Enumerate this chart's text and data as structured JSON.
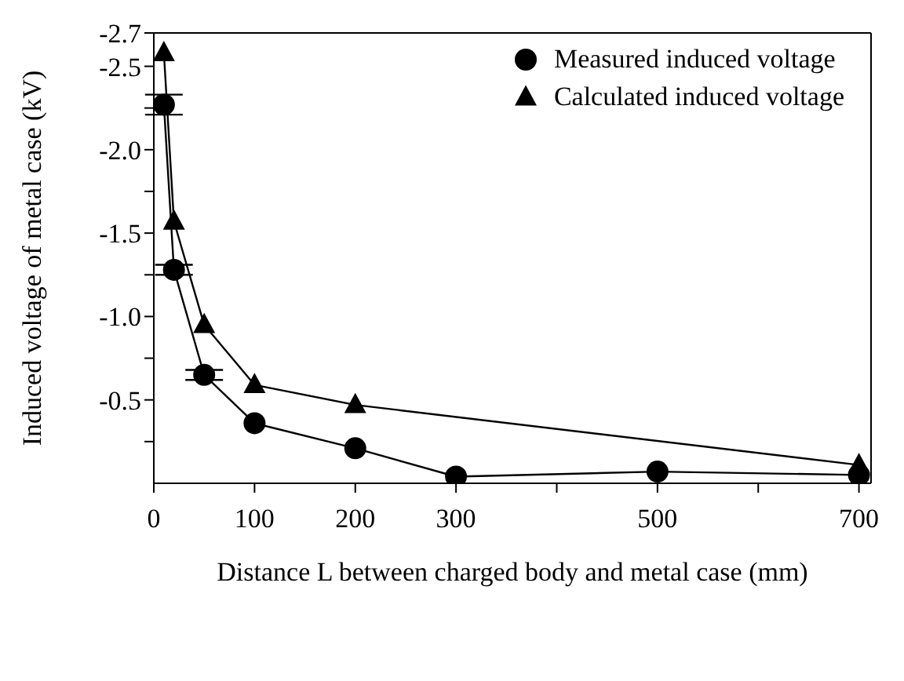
{
  "chart_data": {
    "type": "line",
    "xlabel": "Distance L between charged body and metal case (mm)",
    "ylabel": "Induced voltage of metal case (kV)",
    "x": [
      10,
      20,
      50,
      100,
      200,
      300,
      500,
      700
    ],
    "xlim": [
      0,
      712
    ],
    "xticks": [
      0,
      100,
      200,
      300,
      {
        "value": 400,
        "label": null
      },
      500,
      {
        "value": 600,
        "label": null
      },
      700
    ],
    "ylim": [
      0,
      -2.7
    ],
    "yticks": [
      {
        "value": -0.25,
        "label": null
      },
      -0.5,
      {
        "value": -0.75,
        "label": null
      },
      {
        "value": -1.0,
        "label": "-1.0"
      },
      {
        "value": -1.25,
        "label": null
      },
      -1.5,
      {
        "value": -1.75,
        "label": null
      },
      {
        "value": -2.0,
        "label": "-2.0"
      },
      {
        "value": -2.25,
        "label": null
      },
      -2.5,
      -2.7
    ],
    "series": [
      {
        "name": "Measured induced voltage",
        "color": "#000000",
        "marker": "circle",
        "values": [
          -2.27,
          -1.28,
          -0.65,
          -0.36,
          -0.21,
          -0.04,
          -0.07,
          -0.05
        ],
        "errors": [
          0.06,
          0.03,
          0.03,
          null,
          null,
          null,
          null,
          null
        ]
      },
      {
        "name": "Calculated induced voltage",
        "color": "#000000",
        "marker": "triangle",
        "values": [
          -2.58,
          -1.57,
          -0.95,
          -0.59,
          -0.47,
          null,
          null,
          -0.11
        ]
      }
    ],
    "line_style": "solid",
    "grid": false,
    "legend": "top right"
  }
}
